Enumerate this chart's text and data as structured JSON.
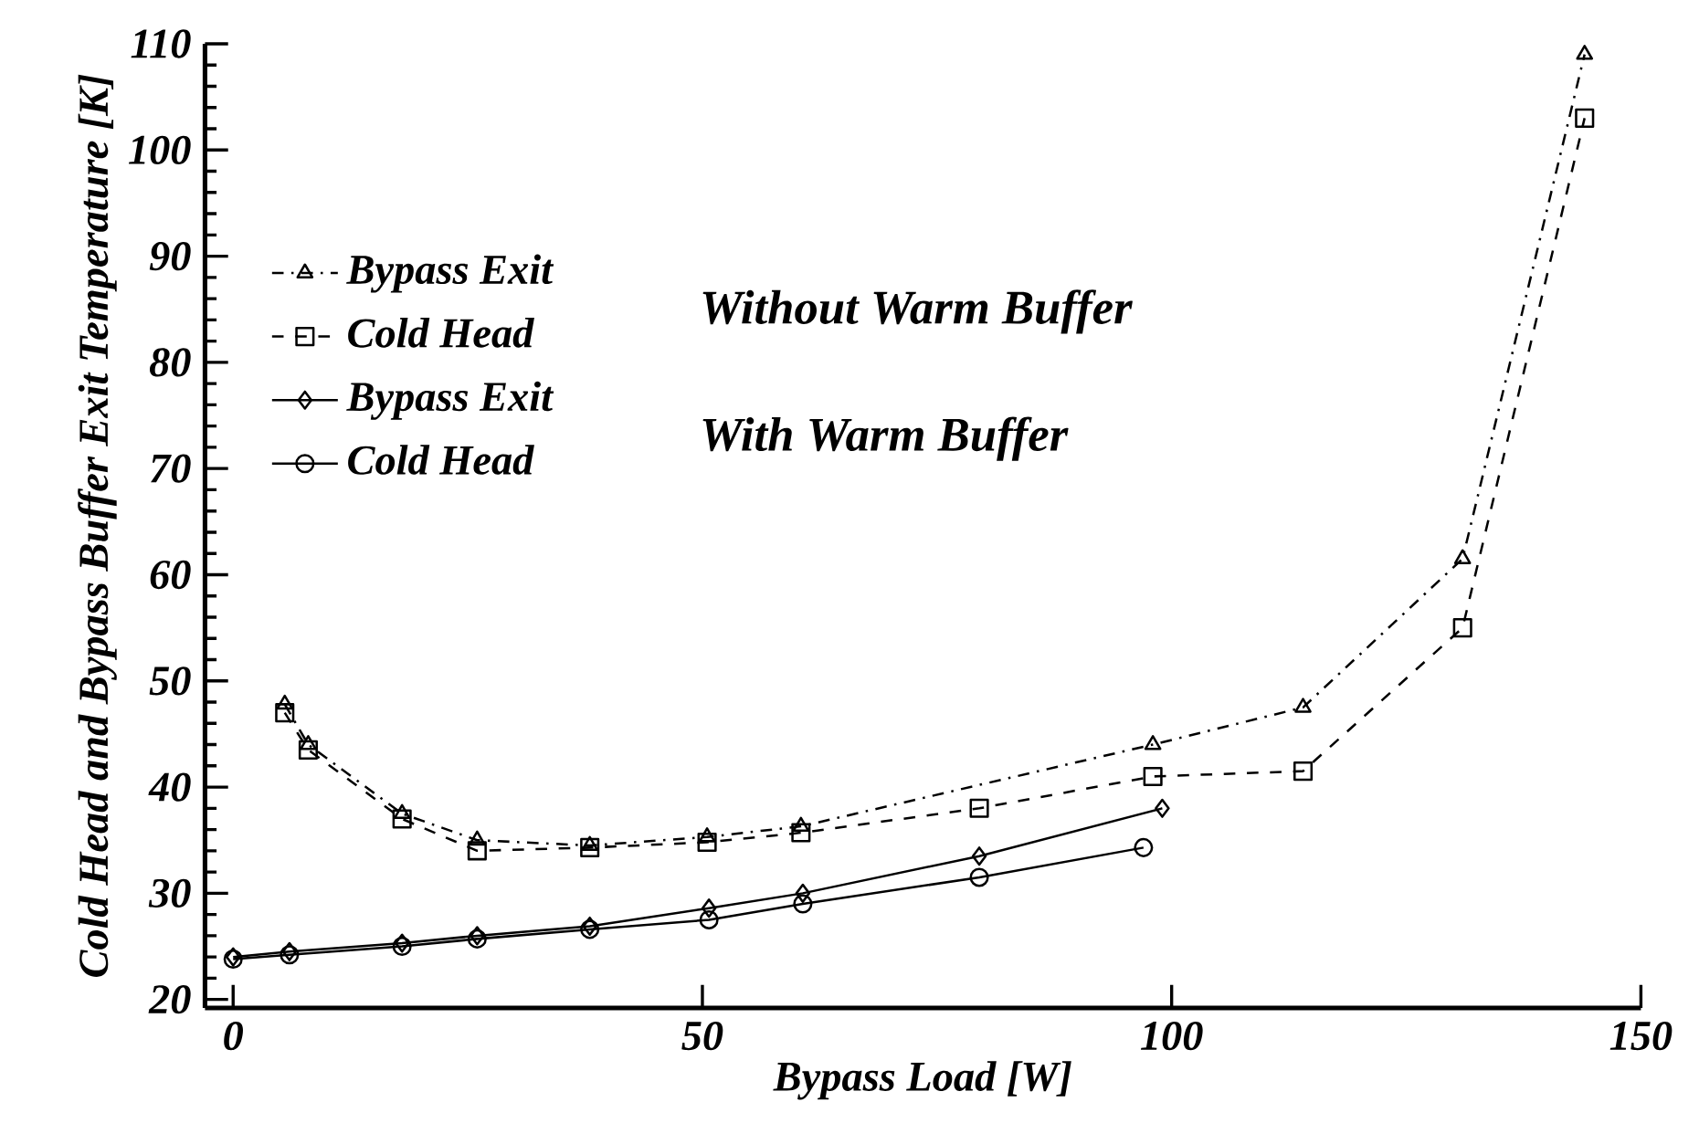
{
  "chart_data": {
    "type": "line",
    "xlabel": "Bypass Load [W]",
    "ylabel": "Cold Head and Bypass Buffer Exit Temperature [K]",
    "xlim": [
      -3,
      150
    ],
    "xticks": [
      0,
      50,
      100,
      150
    ],
    "ylim": [
      19.2,
      110
    ],
    "yticks": [
      20,
      30,
      40,
      50,
      60,
      70,
      80,
      90,
      100,
      110
    ],
    "grid": false,
    "legend": "top left",
    "annotations": [
      "Without Warm Buffer",
      "With Warm Buffer"
    ],
    "series": [
      {
        "name": "Bypass Exit",
        "color": "#000000",
        "marker": "triangle",
        "line_style": "dashdot",
        "x": [
          5.5,
          8,
          18,
          26,
          38,
          50.5,
          60.5,
          98,
          114,
          131,
          144
        ],
        "values": [
          47.8,
          44,
          37.5,
          35,
          34.5,
          35.3,
          36.3,
          44,
          47.5,
          61.5,
          109
        ]
      },
      {
        "name": "Cold Head",
        "color": "#000000",
        "marker": "square",
        "line_style": "dashed",
        "x": [
          5.5,
          8,
          18,
          26,
          38,
          50.5,
          60.5,
          79.5,
          98,
          114,
          131,
          144
        ],
        "values": [
          47,
          43.5,
          37,
          34,
          34.3,
          34.8,
          35.7,
          38,
          41,
          41.5,
          55,
          103
        ]
      },
      {
        "name": "Bypass Exit",
        "color": "#000000",
        "marker": "diamond",
        "line_style": "solid",
        "x": [
          0,
          6,
          18,
          26,
          38,
          50.7,
          60.7,
          79.5,
          99
        ],
        "values": [
          24,
          24.5,
          25.3,
          26,
          26.9,
          28.6,
          30,
          33.5,
          38
        ]
      },
      {
        "name": "Cold Head",
        "color": "#000000",
        "marker": "circle",
        "line_style": "solid",
        "x": [
          0,
          6,
          18,
          26,
          38,
          50.7,
          60.7,
          79.5,
          97
        ],
        "values": [
          23.8,
          24.2,
          25,
          25.7,
          26.6,
          27.5,
          29,
          31.5,
          34.3
        ]
      }
    ]
  }
}
